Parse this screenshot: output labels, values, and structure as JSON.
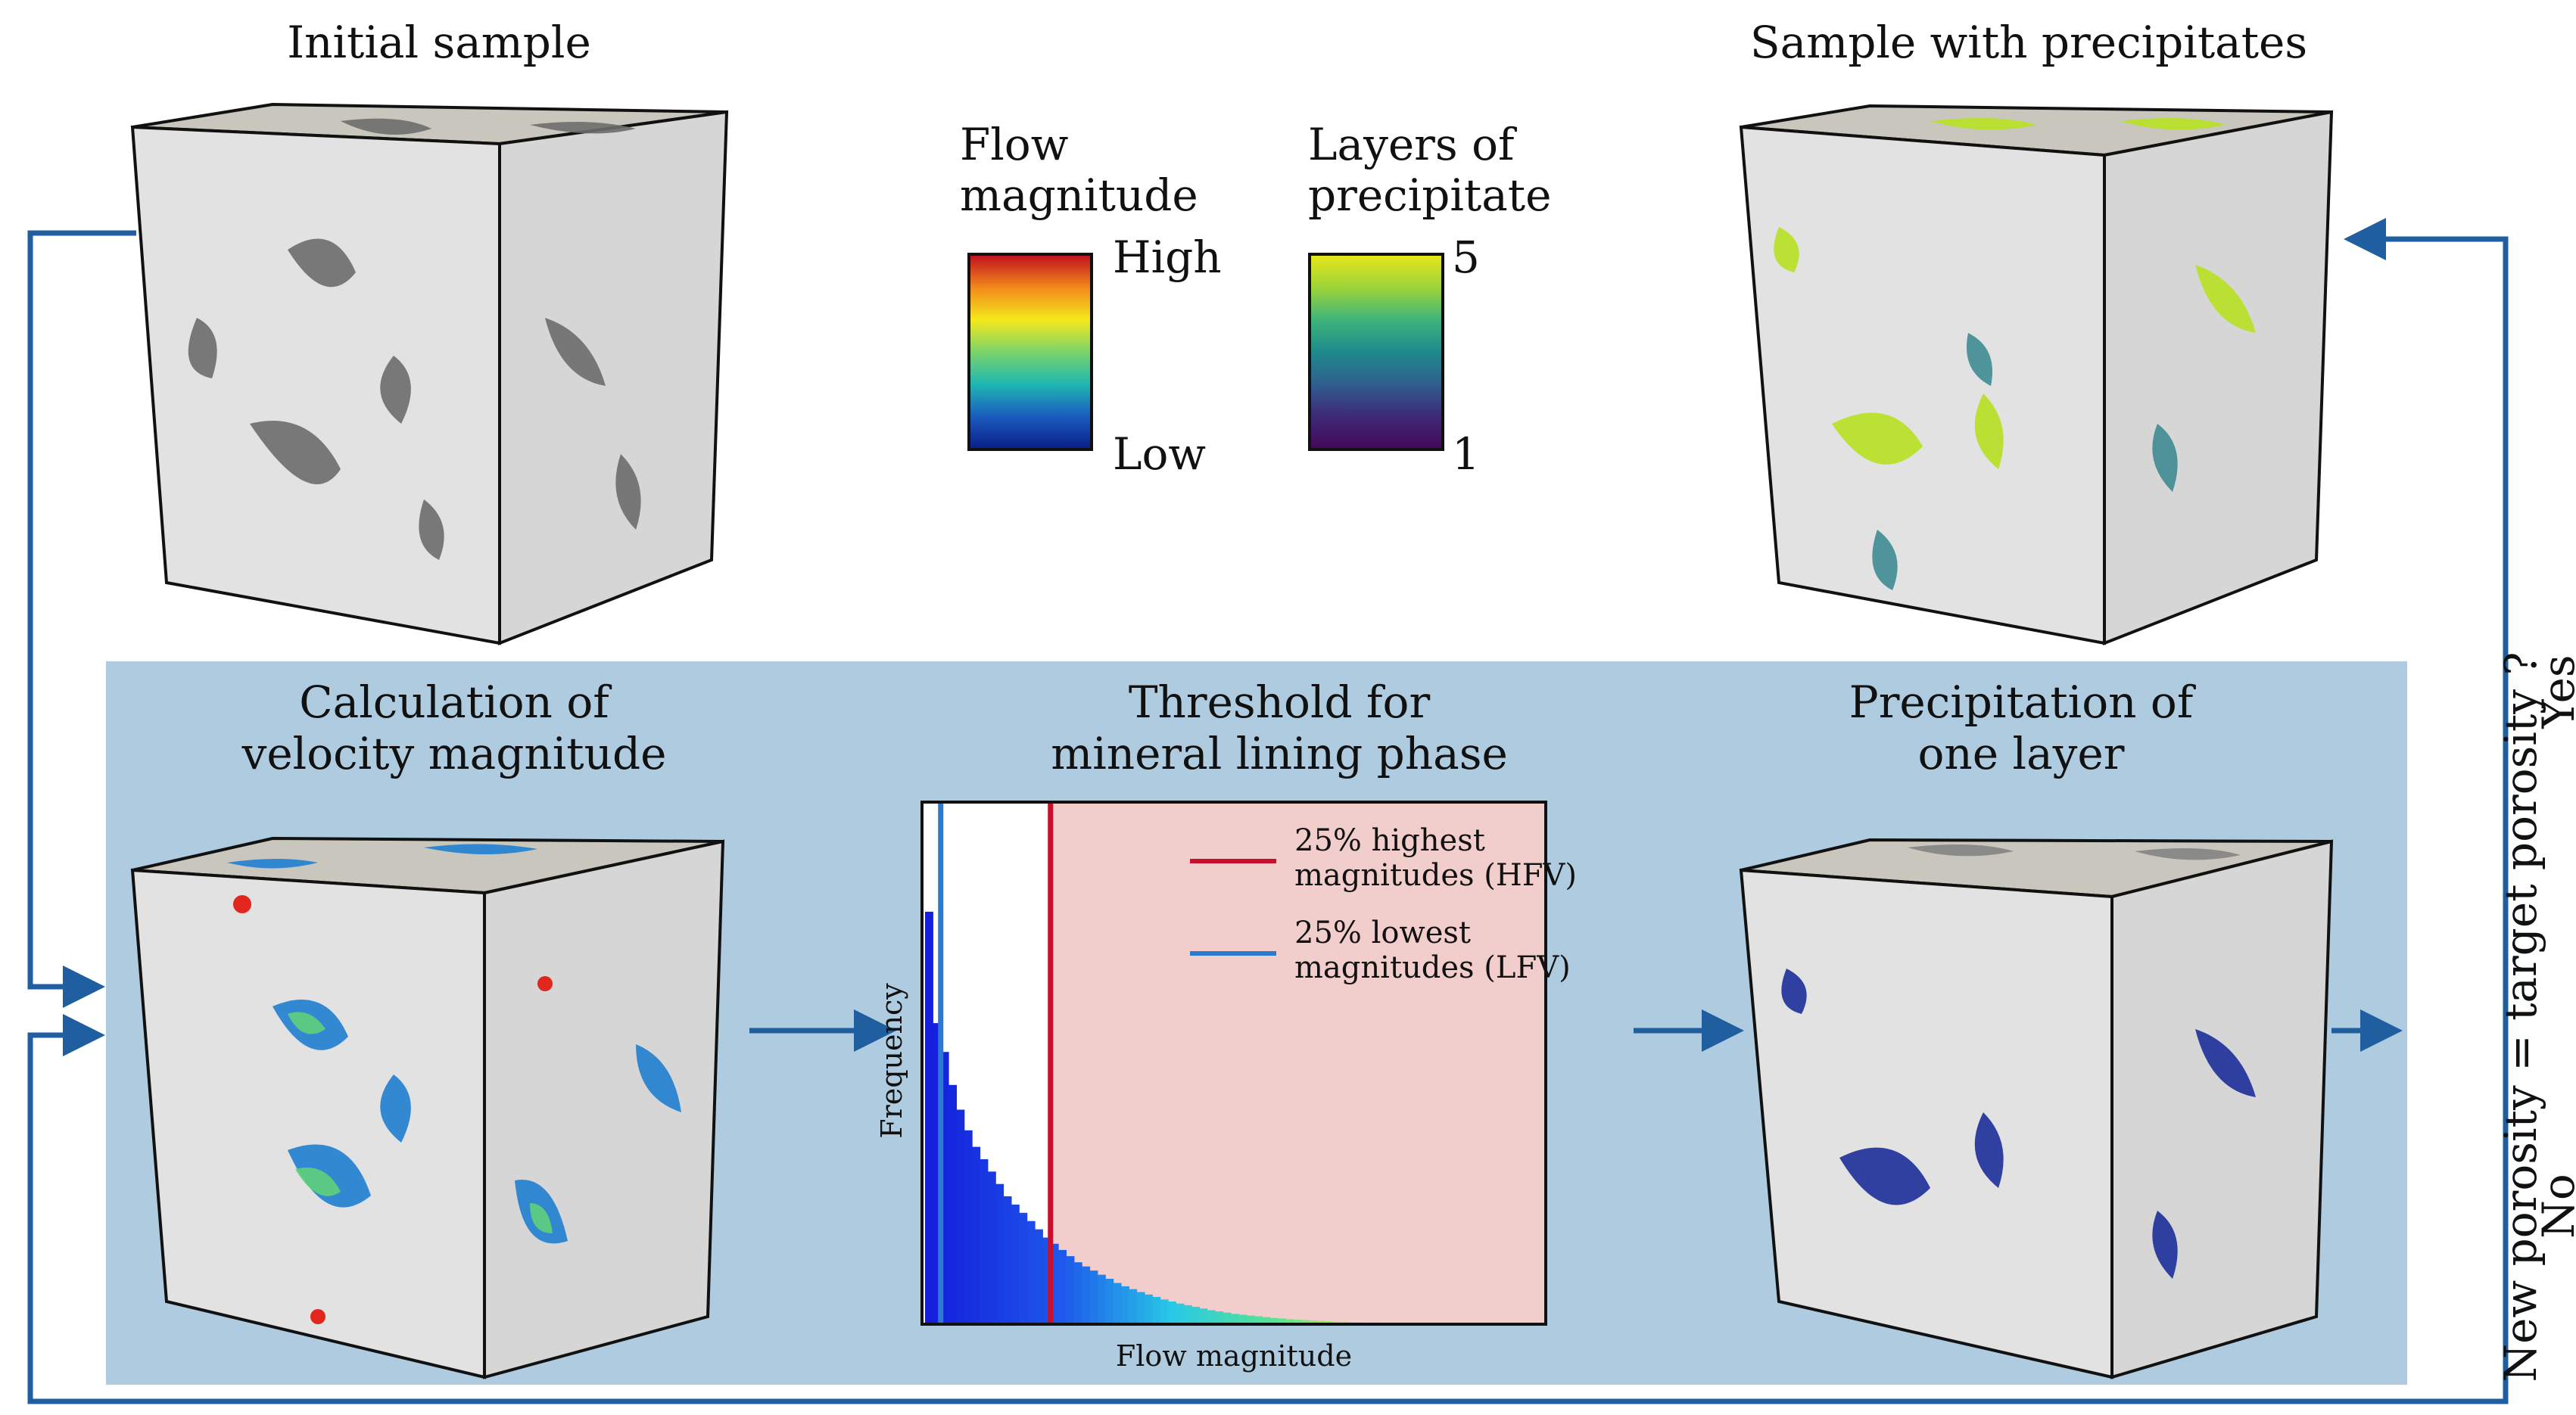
{
  "titles": {
    "initial_sample": "Initial sample",
    "sample_with_precipitates": "Sample with precipitates",
    "calc_line1": "Calculation of",
    "calc_line2": "velocity magnitude",
    "threshold_line1": "Threshold for",
    "threshold_line2": "mineral lining phase",
    "precip_line1": "Precipitation of",
    "precip_line2": "one layer"
  },
  "legend_flow": {
    "title_line1": "Flow",
    "title_line2": "magnitude",
    "high": "High",
    "low": "Low",
    "colors": [
      "#c1121f",
      "#f28a1a",
      "#f4e91c",
      "#7bd36a",
      "#1fb8b1",
      "#1b5dbf",
      "#0b1f8a"
    ]
  },
  "legend_layers": {
    "title_line1": "Layers of",
    "title_line2": "precipitate",
    "max": "5",
    "min": "1",
    "colors": [
      "#e6e61a",
      "#9cd43a",
      "#3fb47a",
      "#1f8a8c",
      "#2f5f8f",
      "#3e2a78",
      "#44085a"
    ]
  },
  "decision": {
    "question": "New porosity = target porosity ?",
    "yes": "Yes",
    "no": "No"
  },
  "chart_data": {
    "type": "bar",
    "xlabel": "Flow magnitude",
    "ylabel": "Frequency",
    "legend": [
      {
        "line1": "25% highest",
        "line2": "magnitudes (HFV)",
        "color": "#c8102e"
      },
      {
        "line1": "25% lowest",
        "line2": "magnitudes (LFV)",
        "color": "#2a7ad2"
      }
    ],
    "values": [
      1.0,
      0.73,
      0.66,
      0.58,
      0.52,
      0.47,
      0.43,
      0.4,
      0.37,
      0.34,
      0.31,
      0.29,
      0.27,
      0.25,
      0.23,
      0.21,
      0.195,
      0.18,
      0.165,
      0.15,
      0.14,
      0.13,
      0.12,
      0.11,
      0.1,
      0.092,
      0.085,
      0.078,
      0.072,
      0.066,
      0.06,
      0.055,
      0.05,
      0.046,
      0.042,
      0.038,
      0.034,
      0.031,
      0.028,
      0.025,
      0.023,
      0.021,
      0.019,
      0.017,
      0.015,
      0.014,
      0.012,
      0.011,
      0.01,
      0.009,
      0.008,
      0.007,
      0.006,
      0.006,
      0.005,
      0.005,
      0.004,
      0.004,
      0.003,
      0.003,
      0.003,
      0.002,
      0.002,
      0.002,
      0.002,
      0.001,
      0.001,
      0.001,
      0.001,
      0.001
    ],
    "lfv_threshold_bin": 2,
    "hfv_threshold_bin": 16
  }
}
